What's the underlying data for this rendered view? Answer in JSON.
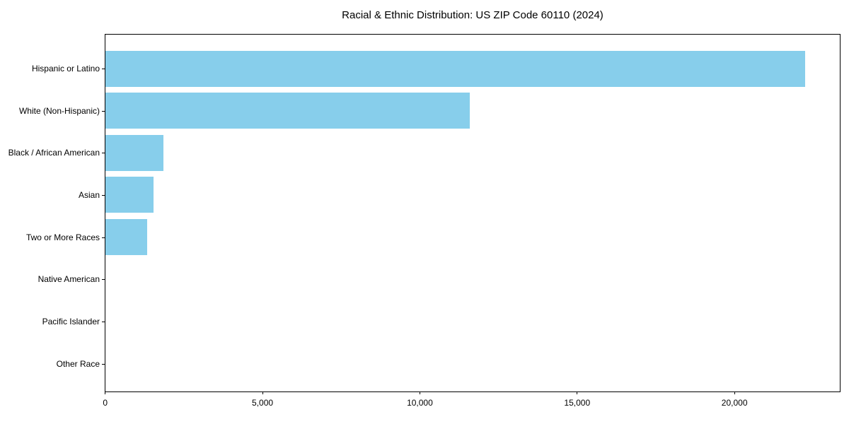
{
  "chart_data": {
    "type": "bar",
    "orientation": "horizontal",
    "title": "Racial & Ethnic Distribution: US ZIP Code 60110 (2024)",
    "categories": [
      "Hispanic or Latino",
      "White (Non-Hispanic)",
      "Black / African American",
      "Asian",
      "Two or More Races",
      "Native American",
      "Pacific Islander",
      "Other Race"
    ],
    "values": [
      22230,
      11580,
      1850,
      1530,
      1330,
      0,
      0,
      0
    ],
    "xlabel": "",
    "ylabel": "",
    "xlim": [
      0,
      23340
    ],
    "xticks": [
      {
        "value": 0,
        "label": "0"
      },
      {
        "value": 5000,
        "label": "5,000"
      },
      {
        "value": 10000,
        "label": "10,000"
      },
      {
        "value": 15000,
        "label": "15,000"
      },
      {
        "value": 20000,
        "label": "20,000"
      }
    ],
    "grid": false,
    "legend": null,
    "colors": {
      "bar": "#87CEEB",
      "frame": "#000000",
      "text": "#000000",
      "background": "#FFFFFF"
    }
  }
}
